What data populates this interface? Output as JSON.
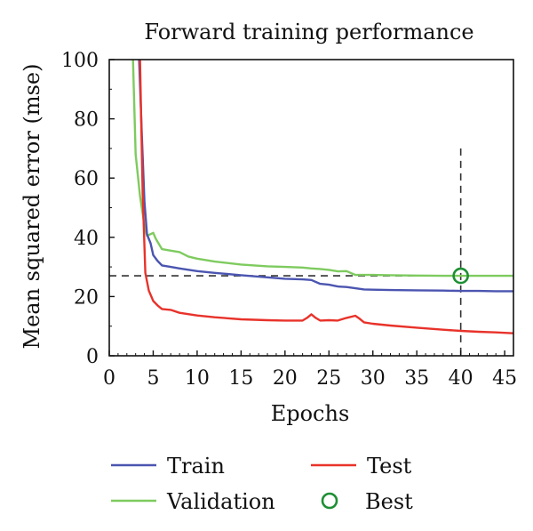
{
  "chart_data": {
    "type": "line",
    "title": "Forward training performance",
    "xlabel": "Epochs",
    "ylabel": "Mean squared error (mse)",
    "xlim": [
      0,
      46
    ],
    "ylim": [
      0,
      100
    ],
    "xticks": [
      0,
      5,
      10,
      15,
      20,
      25,
      30,
      35,
      40,
      45
    ],
    "yticks": [
      0,
      20,
      40,
      60,
      80,
      100
    ],
    "grid": false,
    "legend_position": "bottom",
    "series": [
      {
        "name": "Train",
        "color": "#4b55b0",
        "x": [
          3.4,
          3.7,
          4,
          4.3,
          4.7,
          5,
          5.5,
          6,
          7,
          8,
          10,
          12,
          15,
          18,
          20,
          22,
          23,
          24,
          25,
          26,
          27,
          28,
          29,
          30,
          32,
          35,
          38,
          40,
          42,
          44,
          46
        ],
        "y": [
          100,
          75,
          52,
          41,
          38,
          34,
          32,
          30.5,
          30,
          29.5,
          28.6,
          28,
          27.2,
          26.5,
          26,
          25.8,
          25.6,
          24.3,
          24,
          23.4,
          23.2,
          22.8,
          22.4,
          22.3,
          22.2,
          22.1,
          22.0,
          21.9,
          21.9,
          21.8,
          21.8
        ]
      },
      {
        "name": "Validation",
        "color": "#7ecb5f",
        "x": [
          2.7,
          3,
          3.5,
          4,
          4.3,
          5,
          5.3,
          6,
          7,
          8,
          9,
          10,
          12,
          15,
          18,
          20,
          22,
          23,
          24,
          25,
          26,
          27,
          28,
          29,
          30,
          32,
          35,
          38,
          40,
          42,
          44,
          46
        ],
        "y": [
          100,
          68,
          54,
          44,
          40.5,
          41.5,
          39.5,
          36,
          35.5,
          35,
          33.5,
          32.8,
          31.8,
          30.8,
          30.2,
          30,
          29.8,
          29.5,
          29.3,
          29.0,
          28.5,
          28.6,
          27.3,
          27.3,
          27.3,
          27.2,
          27.1,
          27.0,
          27.0,
          27.0,
          27.0,
          27.0
        ]
      },
      {
        "name": "Test",
        "color": "#e8322a",
        "x": [
          3.5,
          3.8,
          4.1,
          4.5,
          5,
          5.5,
          6,
          7,
          8,
          10,
          12,
          15,
          18,
          20,
          22,
          22.5,
          23,
          23.5,
          24,
          25,
          26,
          27,
          28,
          28.5,
          29,
          30,
          32,
          35,
          38,
          40,
          42,
          44,
          46
        ],
        "y": [
          100,
          55,
          28,
          22,
          18.5,
          17,
          15.8,
          15.5,
          14.5,
          13.6,
          13,
          12.3,
          12,
          11.9,
          11.9,
          12.8,
          14,
          12.8,
          11.9,
          12,
          11.9,
          12.8,
          13.5,
          12.5,
          11.3,
          10.8,
          10.2,
          9.5,
          8.8,
          8.4,
          8.1,
          7.9,
          7.6
        ]
      }
    ],
    "best": {
      "name": "Best",
      "epoch": 40,
      "value": 27,
      "color": "#1e8f34"
    }
  }
}
